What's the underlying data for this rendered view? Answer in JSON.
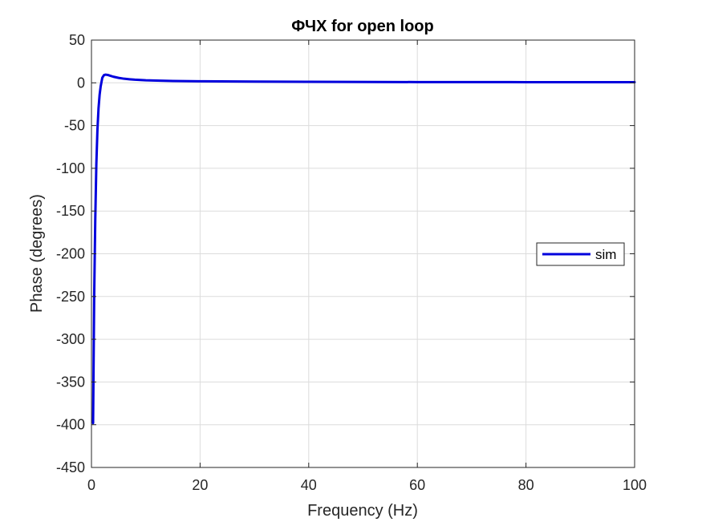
{
  "chart_data": {
    "type": "line",
    "title": "ФЧХ for open loop",
    "xlabel": "Frequency (Hz)",
    "ylabel": "Phase (degrees)",
    "xlim": [
      0,
      100
    ],
    "ylim": [
      -450,
      50
    ],
    "xticks": [
      0,
      20,
      40,
      60,
      80,
      100
    ],
    "yticks": [
      -450,
      -400,
      -350,
      -300,
      -250,
      -200,
      -150,
      -100,
      -50,
      0,
      50
    ],
    "grid": true,
    "legend_position": "right",
    "series": [
      {
        "name": "sim",
        "color": "#0000dd",
        "x": [
          0.3,
          0.5,
          0.7,
          0.9,
          1.1,
          1.3,
          1.5,
          1.7,
          2,
          2.3,
          2.6,
          3,
          3.5,
          4,
          5,
          6,
          7,
          8,
          10,
          12,
          15,
          20,
          30,
          40,
          60,
          80,
          100
        ],
        "y": [
          -398,
          -250,
          -160,
          -95,
          -55,
          -30,
          -14,
          -4,
          6,
          9,
          9.6,
          9.2,
          8.2,
          7.2,
          5.8,
          4.8,
          4.2,
          3.7,
          3.0,
          2.6,
          2.2,
          1.8,
          1.4,
          1.2,
          0.9,
          0.8,
          0.7
        ]
      }
    ]
  }
}
